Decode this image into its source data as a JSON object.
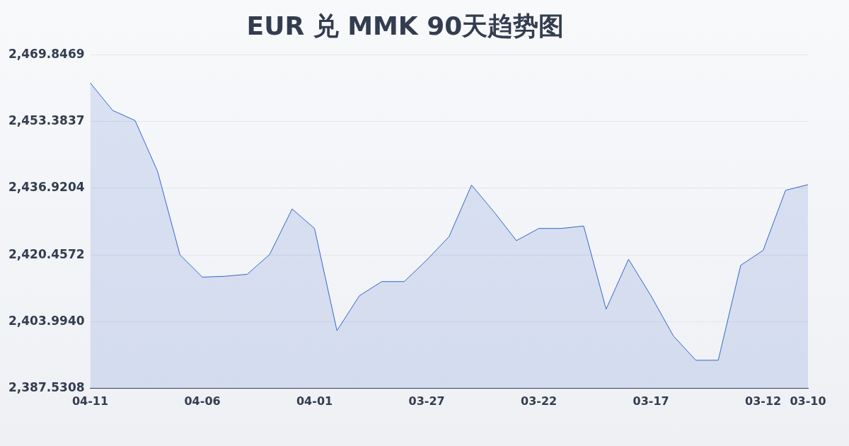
{
  "chart_data": {
    "type": "area",
    "title": "EUR 兑 MMK 90天趋势图",
    "categories": [
      "04-11",
      null,
      null,
      null,
      null,
      "04-06",
      null,
      null,
      null,
      null,
      "04-01",
      null,
      null,
      null,
      null,
      "03-27",
      null,
      null,
      null,
      null,
      "03-22",
      null,
      null,
      null,
      null,
      "03-17",
      null,
      null,
      null,
      null,
      "03-12",
      null,
      "03-10"
    ],
    "series": [
      {
        "color": "#3366cc",
        "values": [
          2462.9,
          2456.1,
          2453.6,
          2441.1,
          2420.5,
          2415.0,
          2415.2,
          2415.7,
          2420.6,
          2431.8,
          2427.0,
          2401.8,
          2410.4,
          2413.9,
          2413.9,
          2419.2,
          2425.0,
          2437.7,
          2431.1,
          2424.0,
          2427.0,
          2427.0,
          2427.6,
          2407.1,
          2419.4,
          2410.4,
          2400.5,
          2394.5,
          2394.5,
          2417.9,
          2421.6,
          2436.4,
          2437.8
        ]
      }
    ],
    "ylim": [
      2387.5308,
      2469.8469
    ],
    "yticks": [
      {
        "value": 2387.5308,
        "label": "2,387.5308"
      },
      {
        "value": 2403.994,
        "label": "2,403.9940"
      },
      {
        "value": 2420.4572,
        "label": "2,420.4572"
      },
      {
        "value": 2436.9204,
        "label": "2,436.9204"
      },
      {
        "value": 2453.3837,
        "label": "2,453.3837"
      },
      {
        "value": 2469.8469,
        "label": "2,469.8469"
      }
    ],
    "grid": "y",
    "legend": false,
    "marker": "none",
    "line_style": "solid"
  }
}
